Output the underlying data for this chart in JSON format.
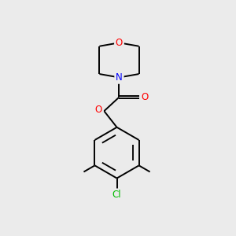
{
  "bg_color": "#ebebeb",
  "bond_color": "#000000",
  "bond_width": 1.4,
  "atom_colors": {
    "O": "#ff0000",
    "N": "#0000ff",
    "Cl": "#00bb00",
    "C": "#000000"
  },
  "font_size_atom": 8.5,
  "font_size_cl": 8.5
}
